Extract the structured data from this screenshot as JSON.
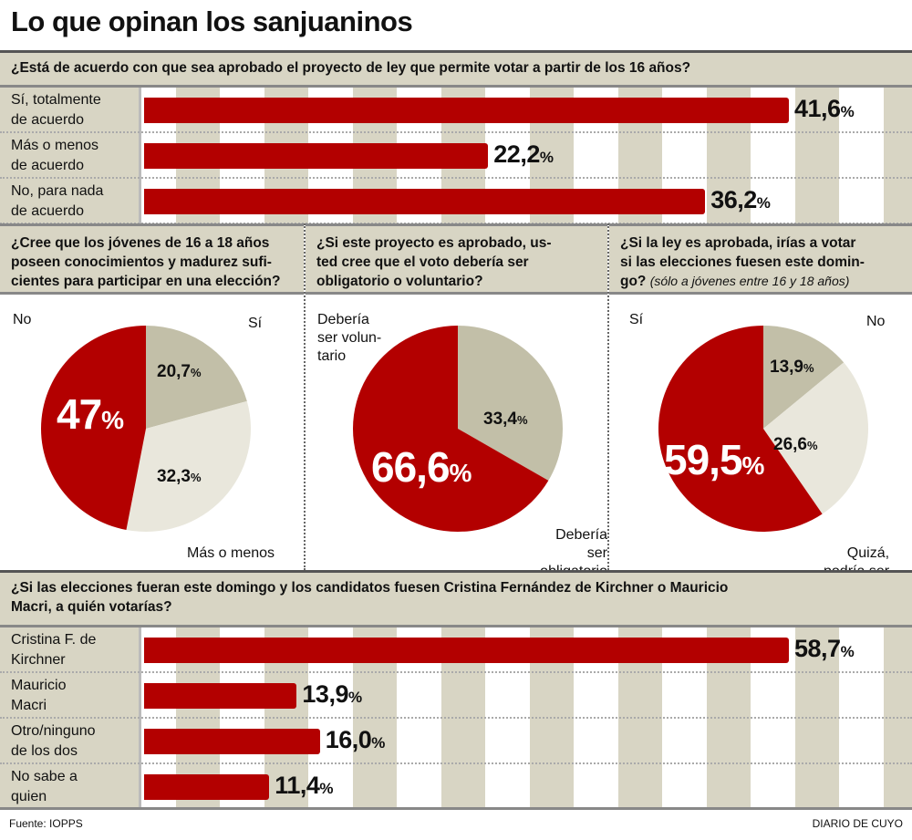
{
  "title": "Lo que opinan los sanjuaninos",
  "colors": {
    "red": "#b30000",
    "grey": "#c2bfa8",
    "light": "#e9e7dc",
    "panel": "#d8d5c4"
  },
  "chart_data": [
    {
      "type": "bar",
      "orientation": "horizontal",
      "title": "¿Está de acuerdo con que sea aprobado el proyecto de ley que permite votar a partir de los 16 años?",
      "categories": [
        "Sí, totalmente de acuerdo",
        "Más o menos de acuerdo",
        "No, para nada de acuerdo"
      ],
      "labels": [
        [
          "Sí, totalmente",
          "de acuerdo"
        ],
        [
          "Más o menos",
          "de acuerdo"
        ],
        [
          "No, para nada",
          "de acuerdo"
        ]
      ],
      "values": [
        41.6,
        22.2,
        36.2
      ],
      "value_labels": [
        "41,6",
        "22,2",
        "36,2"
      ],
      "unit": "%"
    },
    {
      "type": "pie",
      "title": "¿Cree que los jóvenes de 16 a 18 años poseen conocimientos y madurez suficientes para participar en una elección?",
      "title_lines": [
        "¿Cree que los jóvenes de 16 a 18 años",
        "poseen conocimientos y madurez sufi-",
        "cientes para participar en una elección?"
      ],
      "slices": [
        {
          "label": "Sí",
          "value": 20.7,
          "value_label": "20,7",
          "color": "#c2bfa8"
        },
        {
          "label": "Más o menos",
          "value": 32.3,
          "value_label": "32,3",
          "color": "#e9e7dc"
        },
        {
          "label": "No",
          "value": 47,
          "value_label": "47",
          "color": "#b30000"
        }
      ]
    },
    {
      "type": "pie",
      "title": "¿Si este proyecto es aprobado, usted cree que el voto debería ser obligatorio o voluntario?",
      "title_lines": [
        "¿Si este proyecto es aprobado, us-",
        "ted cree que el voto debería ser",
        "obligatorio o voluntario?"
      ],
      "slices": [
        {
          "label": "Debería ser obligatorio",
          "value": 33.4,
          "value_label": "33,4",
          "color": "#c2bfa8"
        },
        {
          "label": "Debería ser voluntario",
          "value": 66.6,
          "value_label": "66,6",
          "color": "#b30000"
        }
      ],
      "label_lines": {
        "voluntario": [
          "Debería",
          "ser volun-",
          "tario"
        ],
        "obligatorio": [
          "Debería",
          "ser obligatorio"
        ]
      }
    },
    {
      "type": "pie",
      "title": "¿Si la ley es aprobada, irías a votar si las elecciones fuesen este domingo?",
      "note": "(sólo a jóvenes entre 16 y 18 años)",
      "title_lines": [
        "¿Si la ley es aprobada, irías a votar",
        "si las elecciones fuesen este domin-",
        "go?"
      ],
      "slices": [
        {
          "label": "No",
          "value": 13.9,
          "value_label": "13,9",
          "color": "#c2bfa8"
        },
        {
          "label": "Quizá, podría ser",
          "value": 26.6,
          "value_label": "26,6",
          "color": "#e9e7dc"
        },
        {
          "label": "Sí",
          "value": 59.5,
          "value_label": "59,5",
          "color": "#b30000"
        }
      ],
      "label_lines": {
        "quiza": [
          "Quizá,",
          "podría ser"
        ]
      }
    },
    {
      "type": "bar",
      "orientation": "horizontal",
      "title": "¿Si las elecciones fueran este domingo y los candidatos fuesen Cristina Fernández de Kirchner o Mauricio Macri, a quién votarías?",
      "title_lines": [
        "¿Si las elecciones fueran este domingo y los candidatos fuesen Cristina Fernández de Kirchner o Mauricio",
        "Macri, a quién votarías?"
      ],
      "categories": [
        "Cristina F. de Kirchner",
        "Mauricio Macri",
        "Otro/ninguno de los dos",
        "No sabe a quien"
      ],
      "labels": [
        [
          "Cristina F. de",
          "Kirchner"
        ],
        [
          "Mauricio",
          "Macri"
        ],
        [
          "Otro/ninguno",
          "de los dos"
        ],
        [
          "No sabe a",
          "quien"
        ]
      ],
      "values": [
        58.7,
        13.9,
        16.0,
        11.4
      ],
      "value_labels": [
        "58,7",
        "13,9",
        "16,0",
        "11,4"
      ],
      "unit": "%"
    }
  ],
  "footer": {
    "source": "Fuente: IOPPS",
    "brand": "DIARIO DE CUYO"
  }
}
